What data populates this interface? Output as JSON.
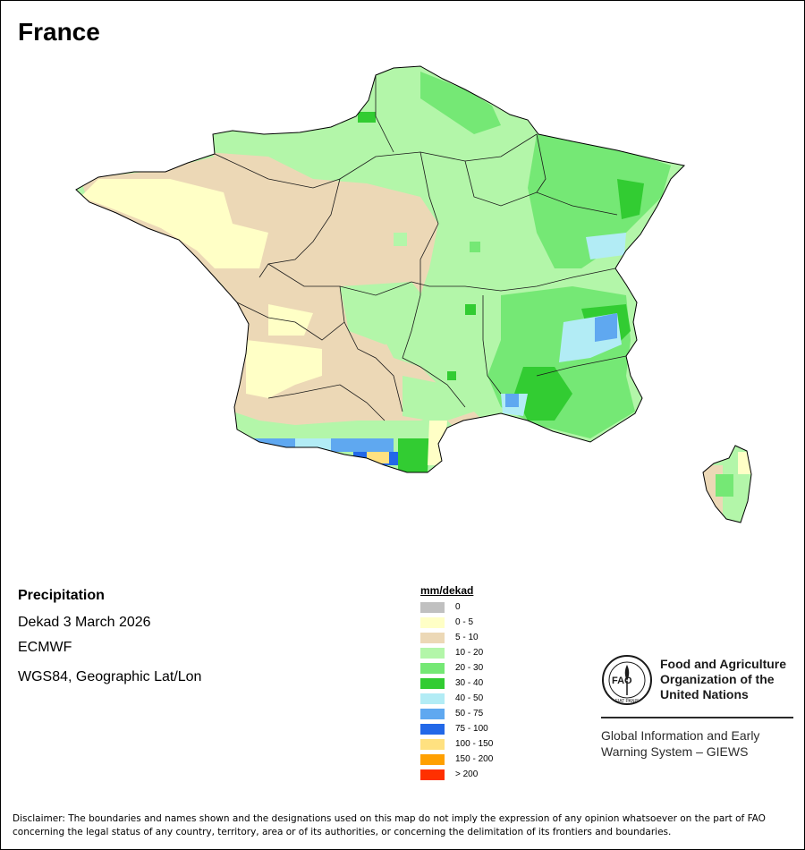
{
  "map": {
    "title": "France",
    "region": "France",
    "features": [
      "Mainland France",
      "Corsica"
    ]
  },
  "info": {
    "variable": "Precipitation",
    "period": "Dekad 3 March 2026",
    "source": "ECMWF",
    "projection": "WGS84, Geographic Lat/Lon"
  },
  "legend": {
    "title": "mm/dekad",
    "items": [
      {
        "label": "0",
        "color": "#c0c0c0"
      },
      {
        "label": "0 - 5",
        "color": "#ffffc6"
      },
      {
        "label": "5 - 10",
        "color": "#ecd8b6"
      },
      {
        "label": "10 - 20",
        "color": "#b3f6a9"
      },
      {
        "label": "20 - 30",
        "color": "#75e875"
      },
      {
        "label": "30 - 40",
        "color": "#32cc32"
      },
      {
        "label": "40 - 50",
        "color": "#b2ecf5"
      },
      {
        "label": "50 - 75",
        "color": "#5fa8f0"
      },
      {
        "label": "75 - 100",
        "color": "#2268e8"
      },
      {
        "label": "100 - 150",
        "color": "#ffe180"
      },
      {
        "label": "150 - 200",
        "color": "#ffa000"
      },
      {
        "label": "> 200",
        "color": "#ff3000"
      }
    ]
  },
  "org": {
    "name_lines": [
      "Food and Agriculture",
      "Organization of the",
      "United Nations"
    ],
    "system_lines": [
      "Global Information and Early",
      "Warning System – GIEWS"
    ],
    "logo_letters": "FAO",
    "logo_motto": "FIAT PANIS"
  },
  "disclaimer": "Disclaimer: The boundaries and names shown and the designations used on this map do not imply the expression of any opinion whatsoever on the part of FAO concerning the legal status of any country, territory, area or of its authorities, or concerning the delimitation of its frontiers and boundaries."
}
